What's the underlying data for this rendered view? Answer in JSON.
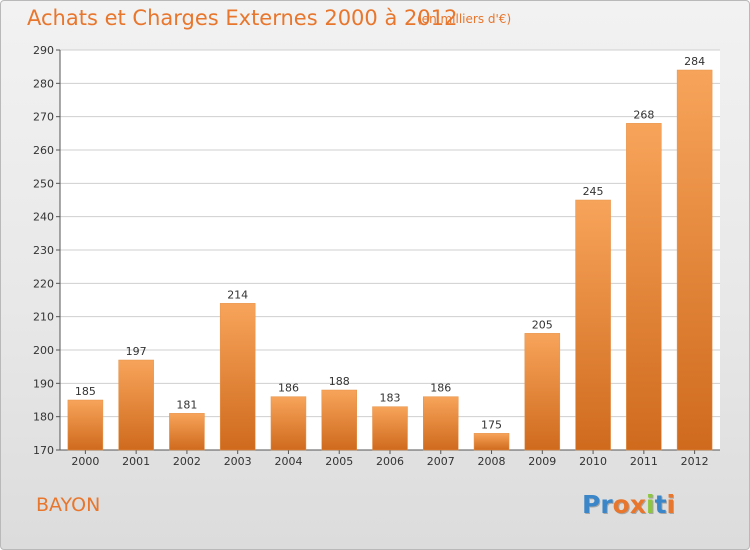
{
  "title": "Achats et Charges Externes 2000 à 2012",
  "subtitle": "(en milliers d'€)",
  "commune": "BAYON",
  "logo": {
    "text": "Proxiti",
    "letter_colors": [
      "#3a86c8",
      "#3a86c8",
      "#e8762c",
      "#e8762c",
      "#8dc63f",
      "#3a86c8",
      "#e8762c"
    ]
  },
  "colors": {
    "accent": "#e8762c",
    "bar_light": "#f7a45a",
    "bar_dark": "#cf6a1d",
    "grid": "#cfcfcf",
    "axis_text": "#333333"
  },
  "chart_data": {
    "type": "bar",
    "categories": [
      "2000",
      "2001",
      "2002",
      "2003",
      "2004",
      "2005",
      "2006",
      "2007",
      "2008",
      "2009",
      "2010",
      "2011",
      "2012"
    ],
    "values": [
      185,
      197,
      181,
      214,
      186,
      188,
      183,
      186,
      175,
      205,
      245,
      268,
      284
    ],
    "ylim": [
      170,
      290
    ],
    "yticks": [
      170,
      180,
      190,
      200,
      210,
      220,
      230,
      240,
      250,
      260,
      270,
      280,
      290
    ],
    "grid": true,
    "data_labels": true
  }
}
